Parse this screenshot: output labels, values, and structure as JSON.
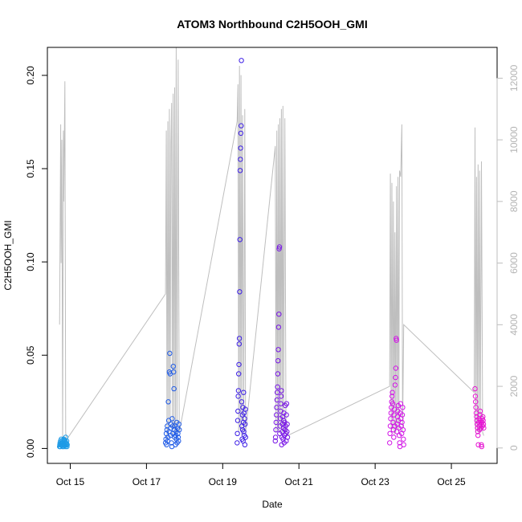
{
  "chart_data": {
    "type": "scatter",
    "title": "ATOM3 Northbound C2H5OOH_GMI",
    "xlabel": "Date",
    "ylabel": "C2H5OOH_GMI",
    "x_ticks": [
      "Oct 15",
      "Oct 17",
      "Oct 19",
      "Oct 21",
      "Oct 23",
      "Oct 25"
    ],
    "x_tick_days": [
      15,
      17,
      19,
      21,
      23,
      25
    ],
    "xlim_days": [
      14.4,
      26.2
    ],
    "y_ticks": [
      "0.00",
      "0.05",
      "0.10",
      "0.15",
      "0.20"
    ],
    "y_tick_values": [
      0.0,
      0.05,
      0.1,
      0.15,
      0.2
    ],
    "ylim": [
      -0.008,
      0.215
    ],
    "y2_ticks": [
      "0",
      "2000",
      "4000",
      "6000",
      "8000",
      "10000",
      "12000"
    ],
    "y2_tick_values": [
      0,
      2000,
      4000,
      6000,
      8000,
      10000,
      12000
    ],
    "y2lim": [
      -500,
      13000
    ],
    "grid": false,
    "legend": "none",
    "altitude_color": "#bebebe",
    "flights": [
      {
        "color": "#1e9be6",
        "day_range": [
          14.72,
          14.92
        ],
        "values": [
          0.001,
          0.002,
          0.003,
          0.001,
          0.004,
          0.002,
          0.0025,
          0.005,
          0.003,
          0.0015,
          0.002,
          0.004,
          0.001,
          0.003,
          0.0035,
          0.002,
          0.001,
          0.005,
          0.0045,
          0.002,
          0.003,
          0.0015,
          0.002,
          0.004,
          0.001,
          0.006,
          0.003,
          0.002,
          0.0025,
          0.004,
          0.001,
          0.002
        ]
      },
      {
        "color": "#1e5ae6",
        "day_range": [
          17.5,
          17.86
        ],
        "values": [
          0.003,
          0.005,
          0.008,
          0.002,
          0.01,
          0.012,
          0.004,
          0.006,
          0.025,
          0.015,
          0.009,
          0.041,
          0.051,
          0.04,
          0.007,
          0.011,
          0.013,
          0.003,
          0.001,
          0.016,
          0.012,
          0.008,
          0.044,
          0.041,
          0.032,
          0.01,
          0.006,
          0.012,
          0.002,
          0.007,
          0.009,
          0.005,
          0.014,
          0.003,
          0.011,
          0.008,
          0.006,
          0.004,
          0.013,
          0.01
        ]
      },
      {
        "color": "#3c1ee6",
        "day_range": [
          19.38,
          19.6
        ],
        "values": [
          0.003,
          0.008,
          0.015,
          0.02,
          0.028,
          0.031,
          0.04,
          0.045,
          0.056,
          0.059,
          0.084,
          0.112,
          0.149,
          0.155,
          0.161,
          0.169,
          0.173,
          0.208,
          0.025,
          0.012,
          0.005,
          0.018,
          0.01,
          0.022,
          0.004,
          0.014,
          0.03,
          0.009,
          0.019,
          0.007,
          0.016,
          0.002,
          0.013,
          0.021,
          0.006
        ]
      },
      {
        "color": "#7814e6",
        "day_range": [
          20.38,
          20.7
        ],
        "values": [
          0.004,
          0.006,
          0.01,
          0.014,
          0.018,
          0.022,
          0.026,
          0.03,
          0.033,
          0.04,
          0.047,
          0.053,
          0.065,
          0.072,
          0.107,
          0.108,
          0.008,
          0.012,
          0.016,
          0.02,
          0.024,
          0.028,
          0.031,
          0.002,
          0.006,
          0.009,
          0.013,
          0.017,
          0.005,
          0.011,
          0.015,
          0.019,
          0.003,
          0.007,
          0.014,
          0.01,
          0.023,
          0.012,
          0.008,
          0.004,
          0.018,
          0.024,
          0.009,
          0.013,
          0.006
        ]
      },
      {
        "color": "#d214e6",
        "day_range": [
          23.38,
          23.75
        ],
        "values": [
          0.003,
          0.008,
          0.012,
          0.016,
          0.019,
          0.022,
          0.025,
          0.028,
          0.03,
          0.024,
          0.014,
          0.01,
          0.006,
          0.018,
          0.021,
          0.012,
          0.034,
          0.038,
          0.043,
          0.059,
          0.058,
          0.009,
          0.013,
          0.017,
          0.02,
          0.023,
          0.015,
          0.011,
          0.007,
          0.003,
          0.001,
          0.019,
          0.024,
          0.016,
          0.012,
          0.008,
          0.014,
          0.018,
          0.022,
          0.01,
          0.005,
          0.002
        ]
      },
      {
        "color": "#e614d2",
        "day_range": [
          25.62,
          25.85
        ],
        "values": [
          0.032,
          0.028,
          0.025,
          0.022,
          0.019,
          0.017,
          0.015,
          0.013,
          0.011,
          0.009,
          0.007,
          0.002,
          0.014,
          0.016,
          0.012,
          0.01,
          0.018,
          0.02,
          0.015,
          0.013,
          0.011,
          0.002,
          0.001,
          0.014,
          0.016,
          0.012,
          0.017,
          0.015,
          0.013,
          0.011
        ]
      }
    ],
    "altitude_segments": [
      [
        [
          14.72,
          4000
        ],
        [
          14.75,
          10500
        ],
        [
          14.76,
          6000
        ],
        [
          14.78,
          10000
        ],
        [
          14.8,
          300
        ],
        [
          14.82,
          10300
        ],
        [
          14.83,
          8000
        ],
        [
          14.86,
          11900
        ],
        [
          14.88,
          500
        ],
        [
          14.9,
          300
        ],
        [
          14.92,
          200
        ]
      ],
      [
        [
          14.92,
          300
        ],
        [
          17.5,
          5000
        ],
        [
          17.52,
          10300
        ],
        [
          17.54,
          300
        ],
        [
          17.56,
          10600
        ],
        [
          17.58,
          500
        ],
        [
          17.6,
          11000
        ],
        [
          17.62,
          800
        ],
        [
          17.64,
          9900
        ],
        [
          17.66,
          11200
        ],
        [
          17.68,
          300
        ],
        [
          17.7,
          11500
        ],
        [
          17.72,
          600
        ],
        [
          17.74,
          11700
        ],
        [
          17.76,
          400
        ],
        [
          17.78,
          13000
        ],
        [
          17.8,
          500
        ],
        [
          17.83,
          12600
        ],
        [
          17.86,
          500
        ]
      ],
      [
        [
          17.86,
          500
        ],
        [
          19.38,
          10600
        ],
        [
          19.4,
          11800
        ],
        [
          19.42,
          500
        ],
        [
          19.44,
          12400
        ],
        [
          19.46,
          600
        ],
        [
          19.48,
          12100
        ],
        [
          19.5,
          400
        ],
        [
          19.52,
          10800
        ],
        [
          19.55,
          500
        ],
        [
          19.58,
          11000
        ],
        [
          19.6,
          500
        ]
      ],
      [
        [
          19.6,
          500
        ],
        [
          20.38,
          9800
        ],
        [
          20.4,
          500
        ],
        [
          20.42,
          10300
        ],
        [
          20.44,
          600
        ],
        [
          20.46,
          10500
        ],
        [
          20.48,
          500
        ],
        [
          20.5,
          10700
        ],
        [
          20.52,
          700
        ],
        [
          20.54,
          11000
        ],
        [
          20.56,
          500
        ],
        [
          20.58,
          11100
        ],
        [
          20.6,
          600
        ],
        [
          20.63,
          10700
        ],
        [
          20.66,
          500
        ],
        [
          20.7,
          400
        ]
      ],
      [
        [
          20.7,
          400
        ],
        [
          23.38,
          2000
        ],
        [
          23.4,
          8900
        ],
        [
          23.42,
          500
        ],
        [
          23.44,
          8600
        ],
        [
          23.46,
          600
        ],
        [
          23.48,
          8000
        ],
        [
          23.5,
          400
        ],
        [
          23.52,
          7000
        ],
        [
          23.54,
          500
        ],
        [
          23.56,
          8500
        ],
        [
          23.58,
          600
        ],
        [
          23.6,
          8800
        ],
        [
          23.62,
          500
        ],
        [
          23.64,
          9000
        ],
        [
          23.67,
          8800
        ],
        [
          23.7,
          10500
        ],
        [
          23.72,
          500
        ],
        [
          23.75,
          4000
        ]
      ],
      [
        [
          23.75,
          4000
        ],
        [
          25.6,
          1800
        ],
        [
          25.62,
          10400
        ],
        [
          25.64,
          500
        ],
        [
          25.66,
          8800
        ],
        [
          25.68,
          600
        ],
        [
          25.7,
          9200
        ],
        [
          25.72,
          500
        ],
        [
          25.74,
          9000
        ],
        [
          25.76,
          500
        ],
        [
          25.79,
          9300
        ],
        [
          25.82,
          500
        ],
        [
          25.85,
          400
        ]
      ]
    ]
  }
}
